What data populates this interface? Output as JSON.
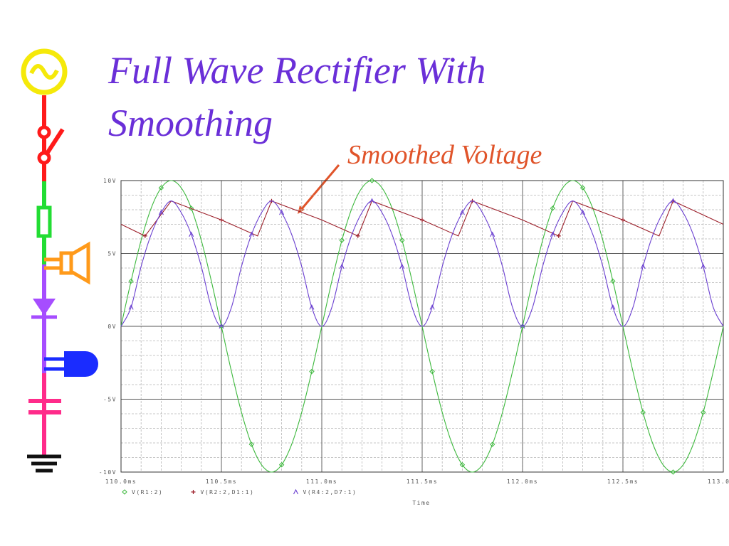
{
  "slide": {
    "title": "Full Wave Rectifier With Smoothing",
    "callout": "Smoothed Voltage",
    "colors": {
      "title": "#6a2fd8",
      "callout": "#e0542a"
    },
    "decor_icons": [
      "ac-source-icon",
      "switch-icon",
      "fuse-icon",
      "speaker-icon",
      "diode-icon",
      "buzzer-icon",
      "capacitor-icon",
      "ground-icon"
    ]
  },
  "chart_data": {
    "type": "line",
    "xlabel": "Time",
    "ylabel": "",
    "xlim": [
      110.0,
      113.0
    ],
    "ylim": [
      -10,
      10
    ],
    "x_unit": "ms",
    "x_ticks": [
      110.0,
      110.5,
      111.0,
      111.5,
      112.0,
      112.5,
      113.0
    ],
    "x_tick_labels": [
      "110.0ms",
      "110.5ms",
      "111.0ms",
      "111.5ms",
      "112.0ms",
      "112.5ms",
      "113.0ms"
    ],
    "y_ticks": [
      10,
      5,
      0,
      -5,
      -10
    ],
    "y_tick_labels": [
      "10V",
      "5V",
      "0V",
      "-5V",
      "-10V"
    ],
    "grid": true,
    "legend_position": "bottom-left",
    "series": [
      {
        "name": "V(R1:2)",
        "color": "#3cb83c",
        "marker": "diamond",
        "x": [
          110.0,
          110.05,
          110.1,
          110.15,
          110.2,
          110.25,
          110.3,
          110.35,
          110.4,
          110.45,
          110.5,
          110.55,
          110.6,
          110.65,
          110.7,
          110.75,
          110.8,
          110.85,
          110.9,
          110.95,
          111.0,
          111.05,
          111.1,
          111.15,
          111.2,
          111.25,
          111.3,
          111.35,
          111.4,
          111.45,
          111.5,
          111.55,
          111.6,
          111.65,
          111.7,
          111.75,
          111.8,
          111.85,
          111.9,
          111.95,
          112.0,
          112.05,
          112.1,
          112.15,
          112.2,
          112.25,
          112.3,
          112.35,
          112.4,
          112.45,
          112.5,
          112.55,
          112.6,
          112.65,
          112.7,
          112.75,
          112.8,
          112.85,
          112.9,
          112.95,
          113.0
        ],
        "values": [
          0,
          3.1,
          5.9,
          8.1,
          9.5,
          10,
          9.5,
          8.1,
          5.9,
          3.1,
          0,
          -3.1,
          -5.9,
          -8.1,
          -9.5,
          -10,
          -9.5,
          -8.1,
          -5.9,
          -3.1,
          0,
          3.1,
          5.9,
          8.1,
          9.5,
          10,
          9.5,
          8.1,
          5.9,
          3.1,
          0,
          -3.1,
          -5.9,
          -8.1,
          -9.5,
          -10,
          -9.5,
          -8.1,
          -5.9,
          -3.1,
          0,
          3.1,
          5.9,
          8.1,
          9.5,
          10,
          9.5,
          8.1,
          5.9,
          3.1,
          0,
          -3.1,
          -5.9,
          -8.1,
          -9.5,
          -10,
          -9.5,
          -8.1,
          -5.9,
          -3.1,
          0
        ]
      },
      {
        "name": "V(R2:2,D1:1)",
        "color": "#9c1f2a",
        "marker": "plus",
        "x": [
          110.0,
          110.12,
          110.25,
          110.5,
          110.68,
          110.75,
          111.0,
          111.18,
          111.25,
          111.5,
          111.68,
          111.75,
          112.0,
          112.18,
          112.25,
          112.5,
          112.68,
          112.75,
          113.0
        ],
        "values": [
          7.0,
          6.2,
          8.6,
          7.3,
          6.2,
          8.6,
          7.3,
          6.2,
          8.6,
          7.3,
          6.2,
          8.6,
          7.3,
          6.2,
          8.6,
          7.3,
          6.2,
          8.6,
          7.0
        ]
      },
      {
        "name": "V(R4:2,D7:1)",
        "color": "#6a3fd0",
        "marker": "triangle",
        "x": [
          110.0,
          110.05,
          110.1,
          110.15,
          110.2,
          110.25,
          110.3,
          110.35,
          110.4,
          110.45,
          110.5,
          110.55,
          110.6,
          110.65,
          110.7,
          110.75,
          110.8,
          110.85,
          110.9,
          110.95,
          111.0,
          111.05,
          111.1,
          111.15,
          111.2,
          111.25,
          111.3,
          111.35,
          111.4,
          111.45,
          111.5,
          111.55,
          111.6,
          111.65,
          111.7,
          111.75,
          111.8,
          111.85,
          111.9,
          111.95,
          112.0,
          112.05,
          112.1,
          112.15,
          112.2,
          112.25,
          112.3,
          112.35,
          112.4,
          112.45,
          112.5,
          112.55,
          112.6,
          112.65,
          112.7,
          112.75,
          112.8,
          112.85,
          112.9,
          112.95,
          113.0
        ],
        "values": [
          0,
          1.3,
          4.1,
          6.3,
          7.8,
          8.6,
          7.8,
          6.3,
          4.1,
          1.3,
          0,
          1.3,
          4.1,
          6.3,
          7.8,
          8.6,
          7.8,
          6.3,
          4.1,
          1.3,
          0,
          1.3,
          4.1,
          6.3,
          7.8,
          8.6,
          7.8,
          6.3,
          4.1,
          1.3,
          0,
          1.3,
          4.1,
          6.3,
          7.8,
          8.6,
          7.8,
          6.3,
          4.1,
          1.3,
          0,
          1.3,
          4.1,
          6.3,
          7.8,
          8.6,
          7.8,
          6.3,
          4.1,
          1.3,
          0,
          1.3,
          4.1,
          6.3,
          7.8,
          8.6,
          7.8,
          6.3,
          4.1,
          1.3,
          0
        ]
      }
    ]
  }
}
